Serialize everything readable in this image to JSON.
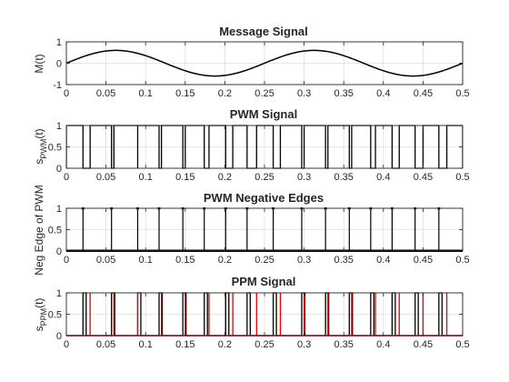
{
  "colors": {
    "axes": "#262626",
    "grid": "#dedede",
    "black": "#000000",
    "red": "#e60000",
    "background": "#ffffff"
  },
  "chart_data": [
    {
      "type": "line",
      "title": "Message Signal",
      "ylabel": "M(t)",
      "ylabel_sub": "",
      "ylabel_after": "",
      "xlim": [
        0,
        0.5
      ],
      "ylim": [
        -1,
        1
      ],
      "xticks": [
        "0",
        "0.05",
        "0.1",
        "0.15",
        "0.2",
        "0.25",
        "0.3",
        "0.35",
        "0.4",
        "0.45",
        "0.5"
      ],
      "yticks": [
        "-1",
        "0",
        "1"
      ],
      "grid": true,
      "series": [
        {
          "kind": "sine",
          "amplitude": 0.6,
          "frequency": 4,
          "color": "#000000"
        }
      ]
    },
    {
      "type": "line",
      "title": "PWM Signal",
      "ylabel": "s",
      "ylabel_sub": "PWM",
      "ylabel_after": "(t)",
      "xlim": [
        0,
        0.5
      ],
      "ylim": [
        0,
        1
      ],
      "xticks": [
        "0",
        "0.05",
        "0.1",
        "0.15",
        "0.2",
        "0.25",
        "0.3",
        "0.35",
        "0.4",
        "0.45",
        "0.5"
      ],
      "yticks": [
        "0",
        "0.5",
        "1"
      ],
      "grid": true,
      "series": [
        {
          "kind": "pwm",
          "rise": [
            0.0,
            0.03,
            0.06,
            0.09,
            0.12,
            0.15,
            0.18,
            0.21,
            0.24,
            0.27,
            0.3,
            0.33,
            0.36,
            0.39,
            0.42,
            0.45,
            0.48
          ],
          "fall": [
            0.021,
            0.057,
            0.09,
            0.117,
            0.147,
            0.174,
            0.201,
            0.228,
            0.261,
            0.297,
            0.327,
            0.357,
            0.384,
            0.411,
            0.44,
            0.47,
            0.5
          ],
          "color": "#000000"
        }
      ]
    },
    {
      "type": "stem",
      "title": "PWM Negative Edges",
      "ylabel": "Neg Edge of PWM",
      "ylabel_sub": "",
      "ylabel_after": "",
      "xlim": [
        0,
        0.5
      ],
      "ylim": [
        0,
        1
      ],
      "xticks": [
        "0",
        "0.05",
        "0.1",
        "0.15",
        "0.2",
        "0.25",
        "0.3",
        "0.35",
        "0.4",
        "0.45",
        "0.5"
      ],
      "yticks": [
        "0",
        "0.5",
        "1"
      ],
      "grid": true,
      "series": [
        {
          "kind": "stem",
          "x": [
            0.021,
            0.057,
            0.09,
            0.117,
            0.147,
            0.174,
            0.201,
            0.228,
            0.261,
            0.297,
            0.327,
            0.357,
            0.384,
            0.411,
            0.44,
            0.47
          ],
          "value": 1,
          "color": "#000000"
        }
      ]
    },
    {
      "type": "line",
      "title": "PPM Signal",
      "ylabel": "s",
      "ylabel_sub": "PPM",
      "ylabel_after": "(t)",
      "xlim": [
        0,
        0.5
      ],
      "ylim": [
        0,
        1
      ],
      "xticks": [
        "0",
        "0.05",
        "0.1",
        "0.15",
        "0.2",
        "0.25",
        "0.3",
        "0.35",
        "0.4",
        "0.45",
        "0.5"
      ],
      "yticks": [
        "0",
        "0.5",
        "1"
      ],
      "grid": true,
      "series": [
        {
          "kind": "pulses",
          "rise": [
            0.021,
            0.057,
            0.09,
            0.117,
            0.147,
            0.174,
            0.201,
            0.228,
            0.261,
            0.297,
            0.327,
            0.357,
            0.384,
            0.411,
            0.44,
            0.47
          ],
          "width": 0.004,
          "color": "#000000"
        },
        {
          "kind": "impulses",
          "x": [
            0.03,
            0.06,
            0.09,
            0.12,
            0.15,
            0.18,
            0.21,
            0.24,
            0.27,
            0.3,
            0.33,
            0.36,
            0.39,
            0.42,
            0.45,
            0.48
          ],
          "value": 1,
          "color": "#e60000"
        }
      ]
    }
  ]
}
